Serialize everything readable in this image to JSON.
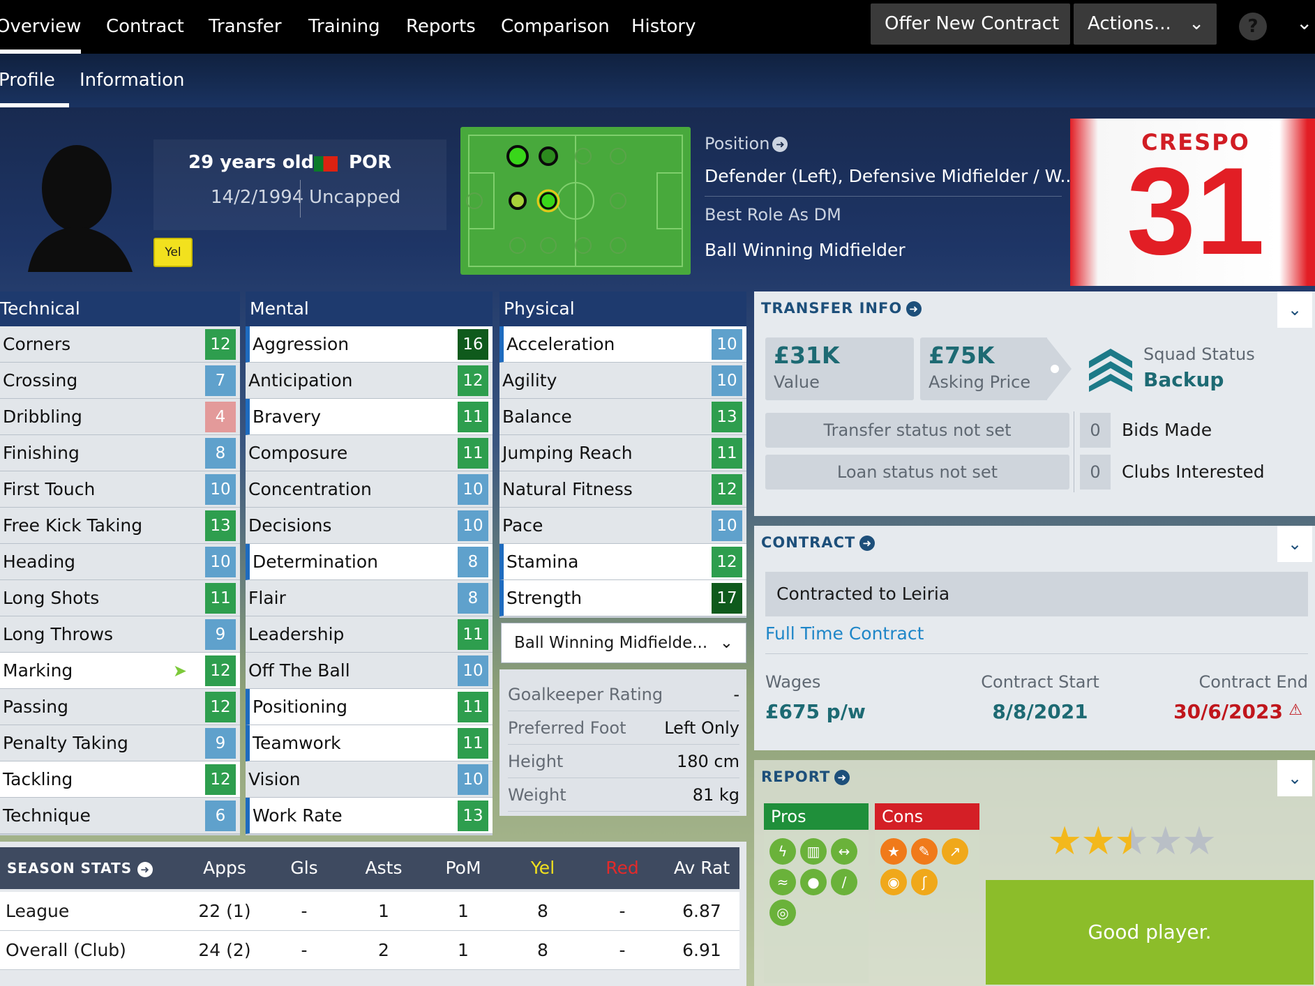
{
  "nav": {
    "tabs": [
      "Overview",
      "Contract",
      "Transfer",
      "Training",
      "Reports",
      "Comparison",
      "History"
    ],
    "offer_button": "Offer New Contract",
    "actions_button": "Actions...",
    "help": "?"
  },
  "subnav": {
    "tabs": [
      "Profile",
      "Information"
    ]
  },
  "player": {
    "age": "29 years old",
    "nationality": "POR",
    "dob": "14/2/1994",
    "caps": "Uncapped",
    "badge": "Yel",
    "position_label": "Position",
    "position": "Defender (Left), Defensive Midfielder / W...",
    "best_role_label": "Best Role As DM",
    "best_role": "Ball Winning Midfielder",
    "shirt_name": "CRESPO",
    "shirt_number": "31"
  },
  "technical": {
    "title": "Technical",
    "items": [
      {
        "name": "Corners",
        "value": "12",
        "color": "#2e9e4e"
      },
      {
        "name": "Crossing",
        "value": "7",
        "color": "#5fa1cc"
      },
      {
        "name": "Dribbling",
        "value": "4",
        "color": "#e39a9a"
      },
      {
        "name": "Finishing",
        "value": "8",
        "color": "#5fa1cc"
      },
      {
        "name": "First Touch",
        "value": "10",
        "color": "#5fa1cc"
      },
      {
        "name": "Free Kick Taking",
        "value": "13",
        "color": "#2e9e4e"
      },
      {
        "name": "Heading",
        "value": "10",
        "color": "#5fa1cc"
      },
      {
        "name": "Long Shots",
        "value": "11",
        "color": "#2e9e4e"
      },
      {
        "name": "Long Throws",
        "value": "9",
        "color": "#5fa1cc"
      },
      {
        "name": "Marking",
        "value": "12",
        "color": "#2e9e4e"
      },
      {
        "name": "Passing",
        "value": "12",
        "color": "#2e9e4e"
      },
      {
        "name": "Penalty Taking",
        "value": "9",
        "color": "#5fa1cc"
      },
      {
        "name": "Tackling",
        "value": "12",
        "color": "#2e9e4e"
      },
      {
        "name": "Technique",
        "value": "6",
        "color": "#5fa1cc"
      }
    ]
  },
  "mental": {
    "title": "Mental",
    "items": [
      {
        "name": "Aggression",
        "value": "16",
        "color": "#0f5a1c"
      },
      {
        "name": "Anticipation",
        "value": "12",
        "color": "#2e9e4e"
      },
      {
        "name": "Bravery",
        "value": "11",
        "color": "#2e9e4e"
      },
      {
        "name": "Composure",
        "value": "11",
        "color": "#2e9e4e"
      },
      {
        "name": "Concentration",
        "value": "10",
        "color": "#5fa1cc"
      },
      {
        "name": "Decisions",
        "value": "10",
        "color": "#5fa1cc"
      },
      {
        "name": "Determination",
        "value": "8",
        "color": "#5fa1cc"
      },
      {
        "name": "Flair",
        "value": "8",
        "color": "#5fa1cc"
      },
      {
        "name": "Leadership",
        "value": "11",
        "color": "#2e9e4e"
      },
      {
        "name": "Off The Ball",
        "value": "10",
        "color": "#5fa1cc"
      },
      {
        "name": "Positioning",
        "value": "11",
        "color": "#2e9e4e"
      },
      {
        "name": "Teamwork",
        "value": "11",
        "color": "#2e9e4e"
      },
      {
        "name": "Vision",
        "value": "10",
        "color": "#5fa1cc"
      },
      {
        "name": "Work Rate",
        "value": "13",
        "color": "#2e9e4e"
      }
    ]
  },
  "physical": {
    "title": "Physical",
    "items": [
      {
        "name": "Acceleration",
        "value": "10",
        "color": "#5fa1cc"
      },
      {
        "name": "Agility",
        "value": "10",
        "color": "#5fa1cc"
      },
      {
        "name": "Balance",
        "value": "13",
        "color": "#2e9e4e"
      },
      {
        "name": "Jumping Reach",
        "value": "11",
        "color": "#2e9e4e"
      },
      {
        "name": "Natural Fitness",
        "value": "12",
        "color": "#2e9e4e"
      },
      {
        "name": "Pace",
        "value": "10",
        "color": "#5fa1cc"
      },
      {
        "name": "Stamina",
        "value": "12",
        "color": "#2e9e4e"
      },
      {
        "name": "Strength",
        "value": "17",
        "color": "#0f5a1c"
      }
    ]
  },
  "role_dropdown": "Ball Winning Midfielde...",
  "player_info": [
    {
      "label": "Goalkeeper Rating",
      "value": "-"
    },
    {
      "label": "Preferred Foot",
      "value": "Left Only"
    },
    {
      "label": "Height",
      "value": "180 cm"
    },
    {
      "label": "Weight",
      "value": "81 kg"
    }
  ],
  "season_stats": {
    "title": "SEASON STATS",
    "columns": [
      "Apps",
      "Gls",
      "Asts",
      "PoM",
      "Yel",
      "Red",
      "Av Rat"
    ],
    "rows": [
      {
        "label": "League",
        "values": [
          "22 (1)",
          "-",
          "1",
          "1",
          "8",
          "-",
          "6.87"
        ]
      },
      {
        "label": "Overall (Club)",
        "values": [
          "24 (2)",
          "-",
          "2",
          "1",
          "8",
          "-",
          "6.91"
        ]
      }
    ]
  },
  "transfer": {
    "title": "TRANSFER INFO",
    "value": "£31K",
    "value_label": "Value",
    "asking": "£75K",
    "asking_label": "Asking Price",
    "squad_label": "Squad Status",
    "squad_value": "Backup",
    "transfer_status": "Transfer status not set",
    "loan_status": "Loan status not set",
    "bids": "0",
    "bids_label": "Bids Made",
    "clubs": "0",
    "clubs_label": "Clubs Interested"
  },
  "contract": {
    "title": "CONTRACT",
    "club": "Contracted to Leiria",
    "type": "Full Time Contract",
    "wages_label": "Wages",
    "wages": "£675 p/w",
    "start_label": "Contract Start",
    "start": "8/8/2021",
    "end_label": "Contract End",
    "end": "30/6/2023"
  },
  "report": {
    "title": "REPORT",
    "pros": "Pros",
    "cons": "Cons",
    "rating_stars": 2.5,
    "verdict": "Good player."
  }
}
